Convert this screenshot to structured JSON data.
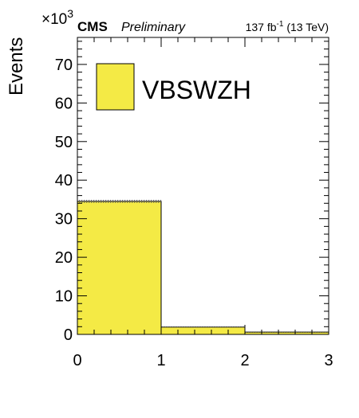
{
  "header": {
    "experiment": "CMS",
    "status": "Preliminary",
    "lumi_prefix": "137 fb",
    "lumi_exp": "-1",
    "lumi_suffix": " (13 TeV)"
  },
  "chart_data": {
    "type": "bar",
    "histogram": true,
    "bin_edges": [
      0,
      1,
      2,
      3
    ],
    "series": [
      {
        "name": "VBSWZH",
        "color": "#f4ea45",
        "values": [
          34.5,
          1.9,
          0.6
        ]
      }
    ],
    "uncertainty_top": [
      34.9,
      2.0,
      0.65
    ],
    "xlabel": "",
    "ylabel": "Events",
    "y_multiplier_base": "×10",
    "y_multiplier_exp": "3",
    "xlim": [
      0,
      3
    ],
    "ylim": [
      0,
      77
    ],
    "xticks": [
      "0",
      "1",
      "2",
      "3"
    ],
    "yticks": [
      "0",
      "10",
      "20",
      "30",
      "40",
      "50",
      "60",
      "70"
    ],
    "legend": {
      "placement": "top-left",
      "entries": [
        "VBSWZH"
      ]
    },
    "grid": false
  }
}
